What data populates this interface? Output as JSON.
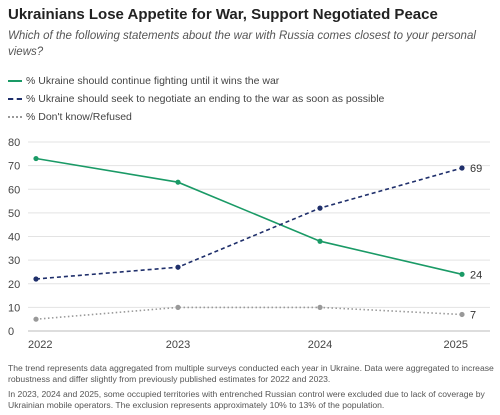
{
  "title": "Ukrainians Lose Appetite for War, Support Negotiated Peace",
  "subtitle": "Which of the following statements about the war with Russia comes closest to your personal views?",
  "legend": [
    {
      "label": "% Ukraine should continue fighting until it wins the war",
      "color": "#1a9a66",
      "style": "solid"
    },
    {
      "label": "% Ukraine should seek to negotiate an ending to the war as soon as possible",
      "color": "#1f2f6b",
      "style": "dashed"
    },
    {
      "label": "% Don't know/Refused",
      "color": "#999999",
      "style": "dotted"
    }
  ],
  "notes": [
    "The trend represents data aggregated from multiple surveys conducted each year in Ukraine. Data were aggregated to increase robustness and differ slightly from previously published estimates for 2022 and 2023.",
    "In 2023, 2024 and 2025, some occupied territories with entrenched Russian control were excluded due to lack of coverage by Ukrainian mobile operators. The exclusion represents approximately 10% to 13% of the population."
  ],
  "chart_data": {
    "type": "line",
    "categories": [
      "2022",
      "2023",
      "2024",
      "2025"
    ],
    "ylim": [
      0,
      80
    ],
    "yticks": [
      0,
      10,
      20,
      30,
      40,
      50,
      60,
      70,
      80
    ],
    "grid": true,
    "series": [
      {
        "name": "% Ukraine should continue fighting until it wins the war",
        "color": "#1a9a66",
        "style": "solid",
        "values": [
          73,
          63,
          38,
          24
        ],
        "end_label": "24"
      },
      {
        "name": "% Ukraine should seek to negotiate an ending to the war as soon as possible",
        "color": "#1f2f6b",
        "style": "dashed",
        "values": [
          22,
          27,
          52,
          69
        ],
        "end_label": "69"
      },
      {
        "name": "% Don't know/Refused",
        "color": "#999999",
        "style": "dotted",
        "values": [
          5,
          10,
          10,
          7
        ],
        "end_label": "7"
      }
    ]
  }
}
